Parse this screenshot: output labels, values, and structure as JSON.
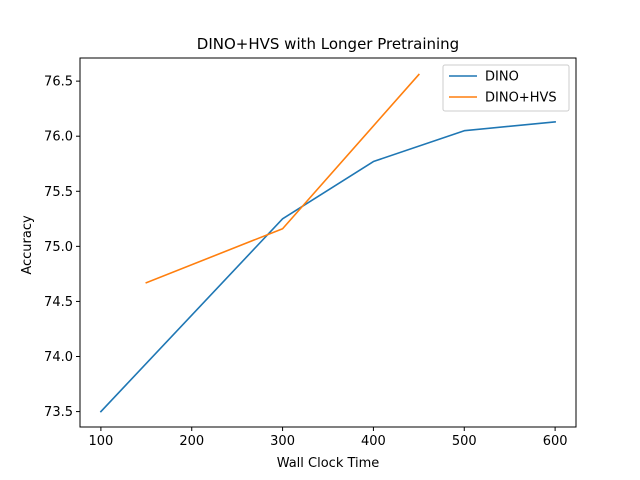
{
  "chart_data": {
    "type": "line",
    "title": "DINO+HVS with Longer Pretraining",
    "xlabel": "Wall Clock Time",
    "ylabel": "Accuracy",
    "xlim": [
      77,
      623
    ],
    "ylim": [
      73.36,
      76.71
    ],
    "xticks": [
      100,
      200,
      300,
      400,
      500,
      600
    ],
    "yticks": [
      73.5,
      74.0,
      74.5,
      75.0,
      75.5,
      76.0,
      76.5
    ],
    "xtick_labels": [
      "100",
      "200",
      "300",
      "400",
      "500",
      "600"
    ],
    "ytick_labels": [
      "73.5",
      "74.0",
      "74.5",
      "75.0",
      "75.5",
      "76.0",
      "76.5"
    ],
    "grid": false,
    "legend_position": "top-right",
    "series": [
      {
        "name": "DINO",
        "color": "#1f77b4",
        "x": [
          100,
          300,
          400,
          500,
          600
        ],
        "y": [
          73.5,
          75.25,
          75.77,
          76.05,
          76.13
        ]
      },
      {
        "name": "DINO+HVS",
        "color": "#ff7f0e",
        "x": [
          150,
          300,
          450
        ],
        "y": [
          74.67,
          75.16,
          76.56
        ]
      }
    ]
  }
}
